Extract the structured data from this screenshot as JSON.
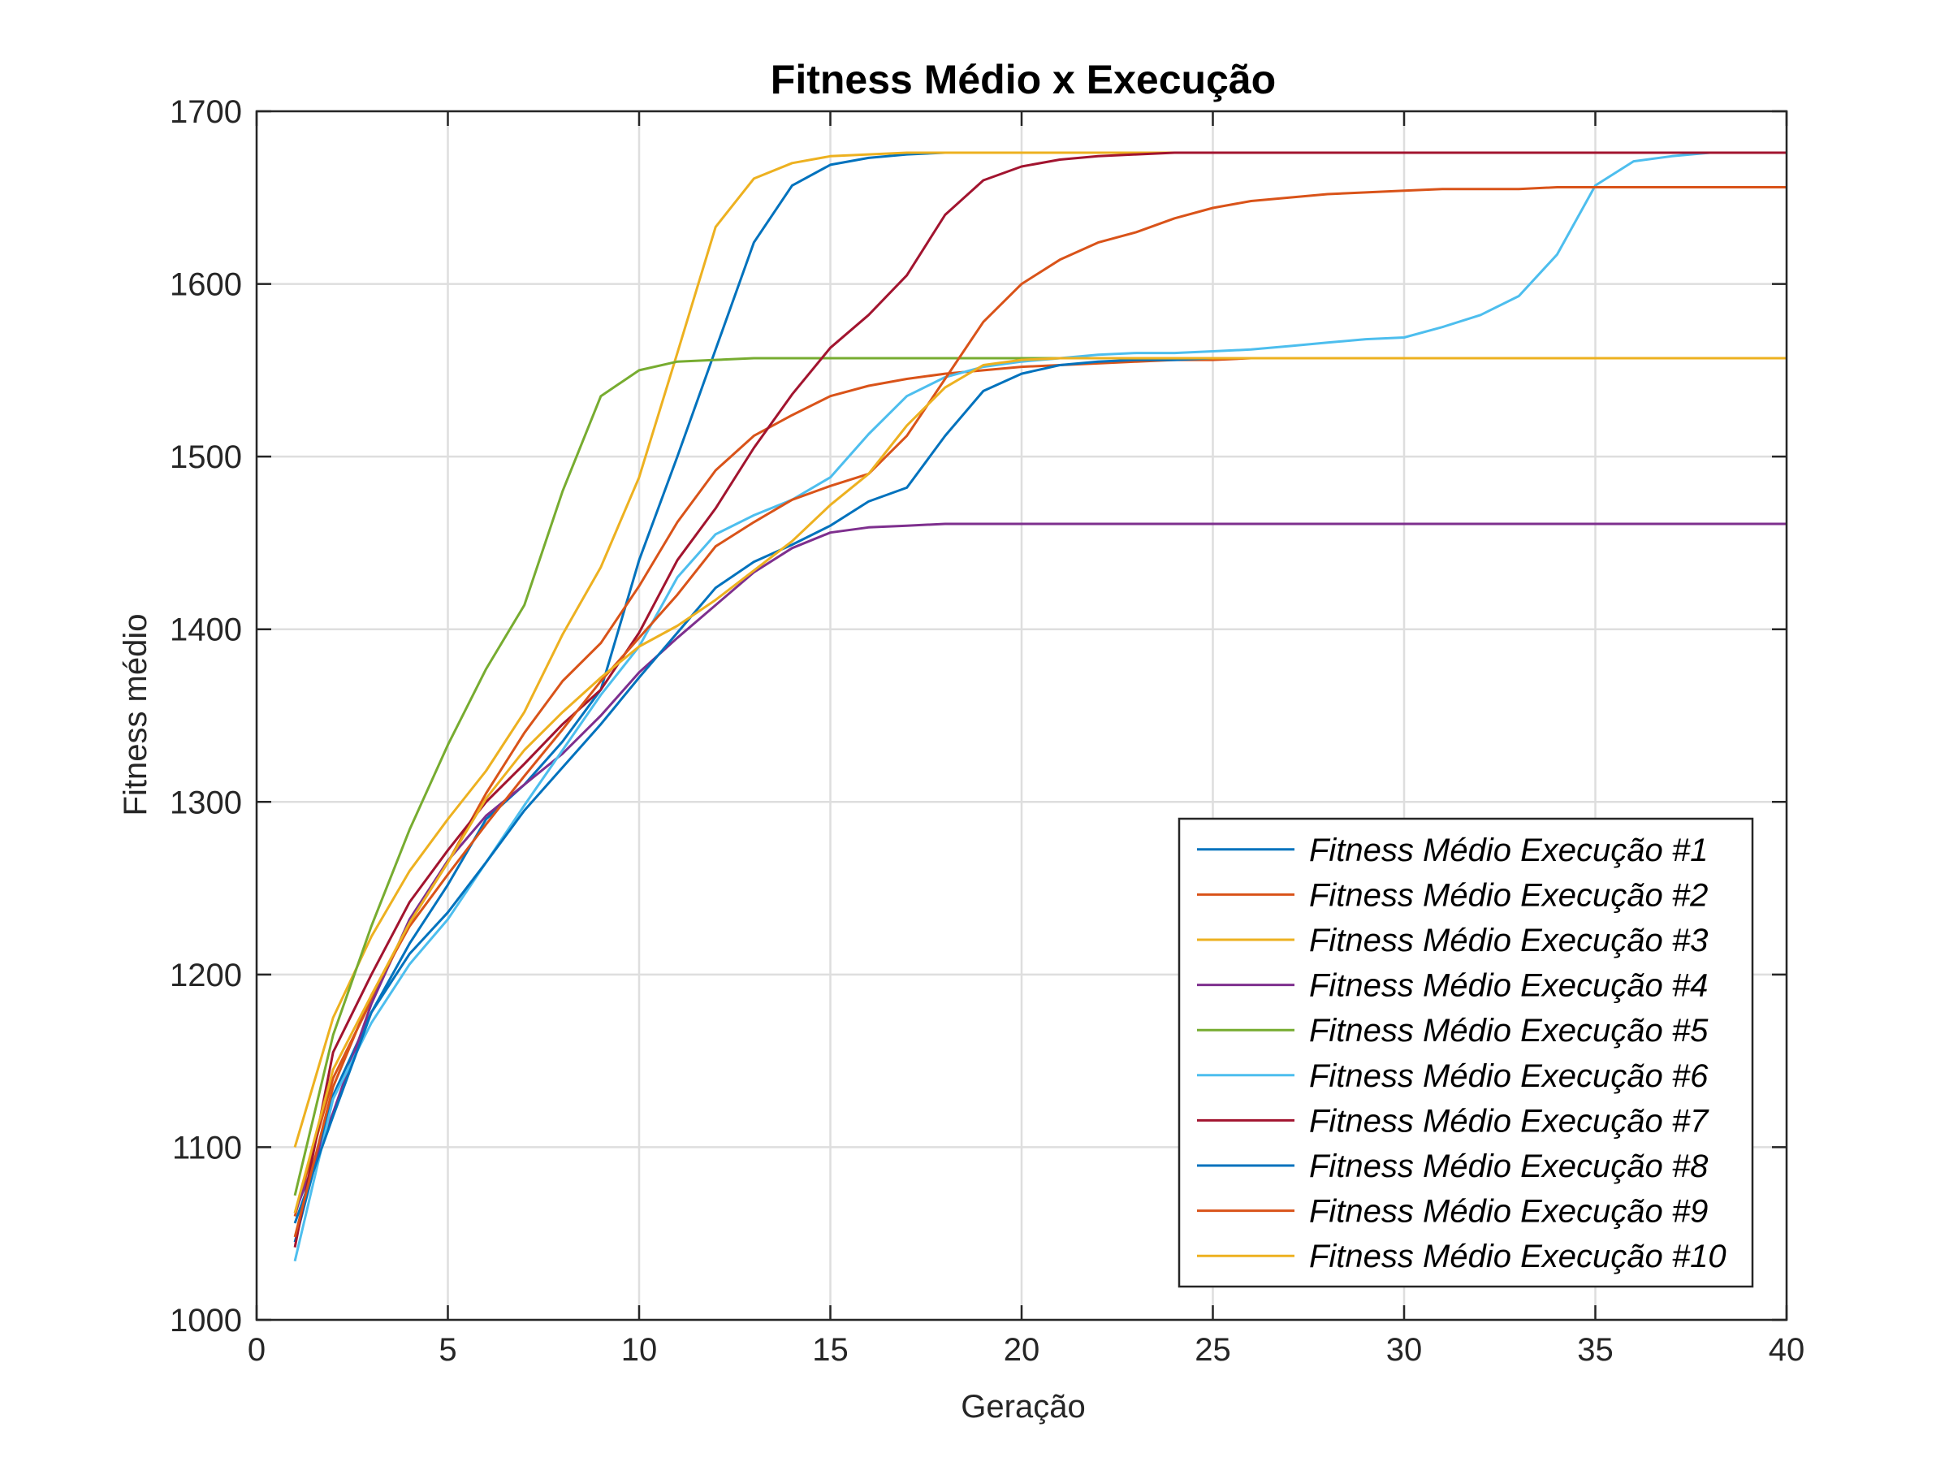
{
  "chart_data": {
    "type": "line",
    "title": "Fitness Médio x Execução",
    "xlabel": "Geração",
    "ylabel": "Fitness médio",
    "xlim": [
      0,
      40
    ],
    "ylim": [
      1000,
      1700
    ],
    "xticks": [
      0,
      5,
      10,
      15,
      20,
      25,
      30,
      35,
      40
    ],
    "yticks": [
      1000,
      1100,
      1200,
      1300,
      1400,
      1500,
      1600,
      1700
    ],
    "grid": true,
    "legend_position": "bottom-right",
    "series": [
      {
        "name": "Fitness Médio Execução #1",
        "color": "#0072BD",
        "x": [
          1,
          2,
          3,
          4,
          5,
          6,
          7,
          8,
          9,
          10,
          11,
          12,
          13,
          14,
          15,
          16,
          17,
          18,
          19,
          20,
          21,
          22,
          23,
          24,
          25,
          26,
          27,
          28,
          29,
          30,
          31,
          32,
          33,
          34,
          35,
          36,
          37,
          38,
          39,
          40
        ],
        "y": [
          1045,
          1130,
          1178,
          1218,
          1252,
          1290,
          1310,
          1335,
          1365,
          1440,
          1500,
          1562,
          1624,
          1657,
          1669,
          1673,
          1675,
          1676,
          1676,
          1676,
          1676,
          1676,
          1676,
          1676,
          1676,
          1676,
          1676,
          1676,
          1676,
          1676,
          1676,
          1676,
          1676,
          1676,
          1676,
          1676,
          1676,
          1676,
          1676,
          1676
        ]
      },
      {
        "name": "Fitness Médio Execução #2",
        "color": "#D95319",
        "x": [
          1,
          2,
          3,
          4,
          5,
          6,
          7,
          8,
          9,
          10,
          11,
          12,
          13,
          14,
          15,
          16,
          17,
          18,
          19,
          20,
          21,
          22,
          23,
          24,
          25,
          26,
          27,
          28,
          29,
          30,
          31,
          32,
          33,
          34,
          35,
          36,
          37,
          38,
          39,
          40
        ],
        "y": [
          1060,
          1140,
          1185,
          1230,
          1265,
          1305,
          1340,
          1370,
          1392,
          1425,
          1462,
          1492,
          1512,
          1524,
          1535,
          1541,
          1545,
          1548,
          1550,
          1552,
          1553,
          1554,
          1555,
          1556,
          1556,
          1557,
          1557,
          1557,
          1557,
          1557,
          1557,
          1557,
          1557,
          1557,
          1557,
          1557,
          1557,
          1557,
          1557,
          1557
        ]
      },
      {
        "name": "Fitness Médio Execução #3",
        "color": "#EDB120",
        "x": [
          1,
          2,
          3,
          4,
          5,
          6,
          7,
          8,
          9,
          10,
          11,
          12,
          13,
          14,
          15,
          16,
          17,
          18,
          19,
          20,
          21,
          22,
          23,
          24,
          25,
          26,
          27,
          28,
          29,
          30,
          31,
          32,
          33,
          34,
          35,
          36,
          37,
          38,
          39,
          40
        ],
        "y": [
          1100,
          1175,
          1222,
          1260,
          1290,
          1318,
          1352,
          1397,
          1436,
          1488,
          1560,
          1633,
          1661,
          1670,
          1674,
          1675,
          1676,
          1676,
          1676,
          1676,
          1676,
          1676,
          1676,
          1676,
          1676,
          1676,
          1676,
          1676,
          1676,
          1676,
          1676,
          1676,
          1676,
          1676,
          1676,
          1676,
          1676,
          1676,
          1676,
          1676
        ]
      },
      {
        "name": "Fitness Médio Execução #4",
        "color": "#7E2F8E",
        "x": [
          1,
          2,
          3,
          4,
          5,
          6,
          7,
          8,
          9,
          10,
          11,
          12,
          13,
          14,
          15,
          16,
          17,
          18,
          19,
          20,
          21,
          22,
          23,
          24,
          25,
          26,
          27,
          28,
          29,
          30,
          31,
          32,
          33,
          34,
          35,
          36,
          37,
          38,
          39,
          40
        ],
        "y": [
          1062,
          1120,
          1183,
          1232,
          1266,
          1292,
          1310,
          1328,
          1350,
          1375,
          1395,
          1414,
          1433,
          1447,
          1456,
          1459,
          1460,
          1461,
          1461,
          1461,
          1461,
          1461,
          1461,
          1461,
          1461,
          1461,
          1461,
          1461,
          1461,
          1461,
          1461,
          1461,
          1461,
          1461,
          1461,
          1461,
          1461,
          1461,
          1461,
          1461
        ]
      },
      {
        "name": "Fitness Médio Execução #5",
        "color": "#77AC30",
        "x": [
          1,
          2,
          3,
          4,
          5,
          6,
          7,
          8,
          9,
          10,
          11,
          12,
          13,
          14,
          15,
          16,
          17,
          18,
          19,
          20,
          21,
          22,
          23,
          24,
          25,
          26,
          27,
          28,
          29,
          30,
          31,
          32,
          33,
          34,
          35,
          36,
          37,
          38,
          39,
          40
        ],
        "y": [
          1072,
          1165,
          1228,
          1284,
          1333,
          1377,
          1414,
          1480,
          1535,
          1550,
          1555,
          1556,
          1557,
          1557,
          1557,
          1557,
          1557,
          1557,
          1557,
          1557,
          1557,
          1557,
          1557,
          1557,
          1557,
          1557,
          1557,
          1557,
          1557,
          1557,
          1557,
          1557,
          1557,
          1557,
          1557,
          1557,
          1557,
          1557,
          1557,
          1557
        ]
      },
      {
        "name": "Fitness Médio Execução #6",
        "color": "#4DBEEE",
        "x": [
          1,
          2,
          3,
          4,
          5,
          6,
          7,
          8,
          9,
          10,
          11,
          12,
          13,
          14,
          15,
          16,
          17,
          18,
          19,
          20,
          21,
          22,
          23,
          24,
          25,
          26,
          27,
          28,
          29,
          30,
          31,
          32,
          33,
          34,
          35,
          36,
          37,
          38,
          39,
          40
        ],
        "y": [
          1034,
          1128,
          1172,
          1206,
          1232,
          1265,
          1298,
          1330,
          1362,
          1390,
          1430,
          1455,
          1466,
          1475,
          1488,
          1513,
          1535,
          1546,
          1552,
          1555,
          1557,
          1559,
          1560,
          1560,
          1561,
          1562,
          1564,
          1566,
          1568,
          1569,
          1575,
          1582,
          1593,
          1617,
          1657,
          1671,
          1674,
          1676,
          1676,
          1676
        ]
      },
      {
        "name": "Fitness Médio Execução #7",
        "color": "#A2142F",
        "x": [
          1,
          2,
          3,
          4,
          5,
          6,
          7,
          8,
          9,
          10,
          11,
          12,
          13,
          14,
          15,
          16,
          17,
          18,
          19,
          20,
          21,
          22,
          23,
          24,
          25,
          26,
          27,
          28,
          29,
          30,
          31,
          32,
          33,
          34,
          35,
          36,
          37,
          38,
          39,
          40
        ],
        "y": [
          1042,
          1155,
          1200,
          1242,
          1272,
          1300,
          1322,
          1345,
          1365,
          1398,
          1440,
          1470,
          1505,
          1536,
          1563,
          1582,
          1605,
          1640,
          1660,
          1668,
          1672,
          1674,
          1675,
          1676,
          1676,
          1676,
          1676,
          1676,
          1676,
          1676,
          1676,
          1676,
          1676,
          1676,
          1676,
          1676,
          1676,
          1676,
          1676,
          1676
        ]
      },
      {
        "name": "Fitness Médio Execução #8",
        "color": "#0072BD",
        "x": [
          1,
          2,
          3,
          4,
          5,
          6,
          7,
          8,
          9,
          10,
          11,
          12,
          13,
          14,
          15,
          16,
          17,
          18,
          19,
          20,
          21,
          22,
          23,
          24,
          25,
          26,
          27,
          28,
          29,
          30,
          31,
          32,
          33,
          34,
          35,
          36,
          37,
          38,
          39,
          40
        ],
        "y": [
          1056,
          1118,
          1178,
          1212,
          1236,
          1265,
          1295,
          1320,
          1345,
          1372,
          1398,
          1424,
          1439,
          1449,
          1460,
          1474,
          1482,
          1512,
          1538,
          1548,
          1553,
          1555,
          1556,
          1556,
          1557,
          1557,
          1557,
          1557,
          1557,
          1557,
          1557,
          1557,
          1557,
          1557,
          1557,
          1557,
          1557,
          1557,
          1557,
          1557
        ]
      },
      {
        "name": "Fitness Médio Execução #9",
        "color": "#D95319",
        "x": [
          1,
          2,
          3,
          4,
          5,
          6,
          7,
          8,
          9,
          10,
          11,
          12,
          13,
          14,
          15,
          16,
          17,
          18,
          19,
          20,
          21,
          22,
          23,
          24,
          25,
          26,
          27,
          28,
          29,
          30,
          31,
          32,
          33,
          34,
          35,
          36,
          37,
          38,
          39,
          40
        ],
        "y": [
          1048,
          1135,
          1188,
          1228,
          1258,
          1287,
          1315,
          1342,
          1370,
          1395,
          1420,
          1448,
          1462,
          1475,
          1483,
          1490,
          1512,
          1545,
          1578,
          1600,
          1614,
          1624,
          1630,
          1638,
          1644,
          1648,
          1650,
          1652,
          1653,
          1654,
          1655,
          1655,
          1655,
          1656,
          1656,
          1656,
          1656,
          1656,
          1656,
          1656
        ]
      },
      {
        "name": "Fitness Médio Execução #10",
        "color": "#EDB120",
        "x": [
          1,
          2,
          3,
          4,
          5,
          6,
          7,
          8,
          9,
          10,
          11,
          12,
          13,
          14,
          15,
          16,
          17,
          18,
          19,
          20,
          21,
          22,
          23,
          24,
          25,
          26,
          27,
          28,
          29,
          30,
          31,
          32,
          33,
          34,
          35,
          36,
          37,
          38,
          39,
          40
        ],
        "y": [
          1062,
          1145,
          1188,
          1230,
          1265,
          1302,
          1330,
          1352,
          1372,
          1390,
          1402,
          1417,
          1434,
          1451,
          1472,
          1490,
          1518,
          1540,
          1553,
          1556,
          1557,
          1557,
          1557,
          1557,
          1557,
          1557,
          1557,
          1557,
          1557,
          1557,
          1557,
          1557,
          1557,
          1557,
          1557,
          1557,
          1557,
          1557,
          1557,
          1557
        ]
      }
    ]
  }
}
